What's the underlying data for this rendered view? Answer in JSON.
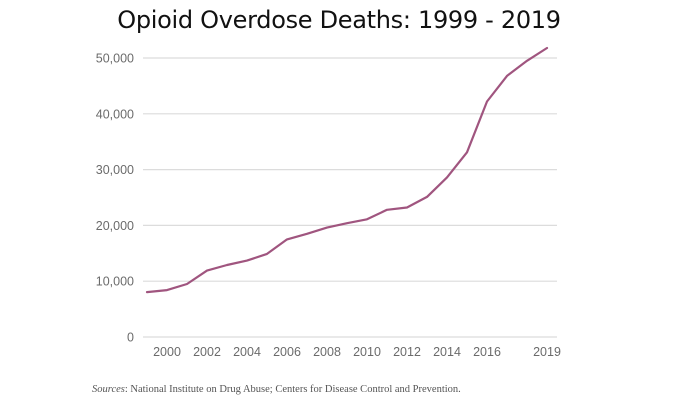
{
  "chart_data": {
    "type": "line",
    "title": "Opioid Overdose Deaths: 1999 - 2019",
    "xlabel": "",
    "ylabel": "",
    "x": [
      1999,
      2000,
      2001,
      2002,
      2003,
      2004,
      2005,
      2006,
      2007,
      2008,
      2009,
      2010,
      2011,
      2012,
      2013,
      2014,
      2015,
      2016,
      2017,
      2018,
      2019
    ],
    "series": [
      {
        "name": "Opioid overdose deaths",
        "color": "#a0557f",
        "values": [
          8050,
          8400,
          9500,
          11900,
          12900,
          13700,
          14900,
          17500,
          18500,
          19600,
          20400,
          21100,
          22800,
          23200,
          25100,
          28600,
          33100,
          42200,
          46800,
          49500,
          51800
        ]
      }
    ],
    "ylim": [
      0,
      50000
    ],
    "xlim": [
      1999,
      2019
    ],
    "yticks": [
      0,
      10000,
      20000,
      30000,
      40000,
      50000
    ],
    "ytick_labels": [
      "0",
      "10,000",
      "20,000",
      "30,000",
      "40,000",
      "50,000"
    ],
    "xticks": [
      2000,
      2002,
      2004,
      2006,
      2008,
      2010,
      2012,
      2014,
      2016,
      2019
    ],
    "xtick_labels": [
      "2000",
      "2002",
      "2004",
      "2006",
      "2008",
      "2010",
      "2012",
      "2014",
      "2016",
      "2019"
    ],
    "grid": "horizontal",
    "legend": "none"
  },
  "footer": {
    "sources_label": "Sources",
    "sources_text": ": National Institute on Drug Abuse; Centers for Disease Control and Prevention."
  }
}
